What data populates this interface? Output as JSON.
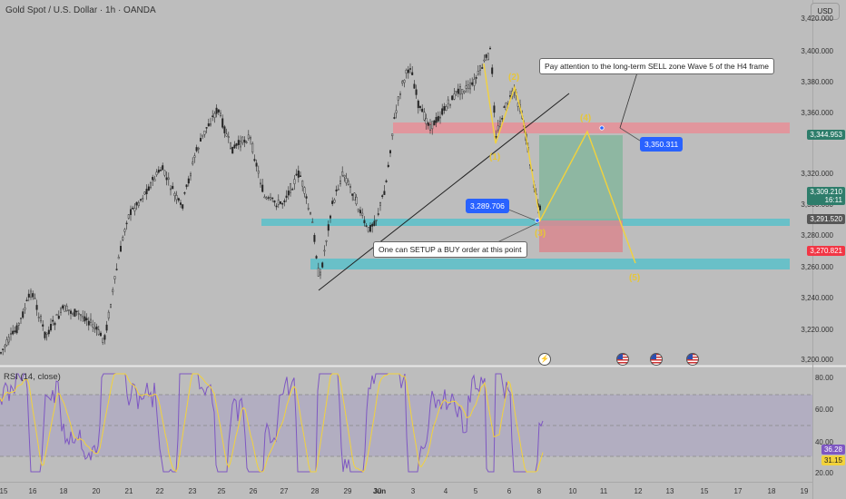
{
  "header": {
    "symbol_title": "Gold Spot / U.S. Dollar · 1h · OANDA",
    "currency_button": "USD"
  },
  "price_axis": {
    "ticks": [
      "3,420.000",
      "3,400.000",
      "3,380.000",
      "3,360.000",
      "3,320.000",
      "3,300.000",
      "3,280.000",
      "3,260.000",
      "3,240.000",
      "3,220.000",
      "3,200.000"
    ]
  },
  "rsi_axis": {
    "ticks": [
      "80.00",
      "60.00",
      "40.00",
      "20.00"
    ]
  },
  "time_axis": {
    "ticks": [
      "15",
      "16",
      "18",
      "20",
      "21",
      "22",
      "23",
      "25",
      "26",
      "27",
      "28",
      "29",
      "30",
      "Jun",
      "3",
      "4",
      "5",
      "6",
      "8",
      "10",
      "11",
      "12",
      "13",
      "15",
      "17",
      "18",
      "19"
    ]
  },
  "price_badges": {
    "target": "3,344.953",
    "current_price": "3,309.210",
    "countdown": "16:11",
    "entry": "3,291.520",
    "stop": "3,270.821"
  },
  "rsi_badges": {
    "rsi_value": "36.28",
    "ma_value": "31.15"
  },
  "rsi_panel": {
    "label": "RSI (14, close)"
  },
  "annotations": {
    "sell_zone_note": "Pay attention to the long-term SELL zone Wave 5 of the H4 frame",
    "buy_note": "One can SETUP a BUY order at this point",
    "resistance_price": "3,350.311",
    "support_price": "3,289.706"
  },
  "wave_labels": {
    "w1": "(1)",
    "w2": "(2)",
    "w3": "(3)",
    "w4": "(4)",
    "w5": "(5)"
  },
  "colors": {
    "background": "#bdbdbd",
    "candle_up": "#262626",
    "candle_down": "#262626",
    "wave": "#f2d23c",
    "sell_zone": "#e88f98",
    "buy_zone": "#5fc0c9",
    "target_fill": "#7fb59a",
    "stop_fill": "#d9888f",
    "badge_blue": "#2962ff",
    "badge_red": "#f23645",
    "rsi_line": "#7e57c2",
    "rsi_ma": "#f2d23c"
  },
  "icons": [
    "lightning-event-icon",
    "us-flag-event-icon",
    "us-flag-event-icon",
    "us-flag-event-icon"
  ]
}
